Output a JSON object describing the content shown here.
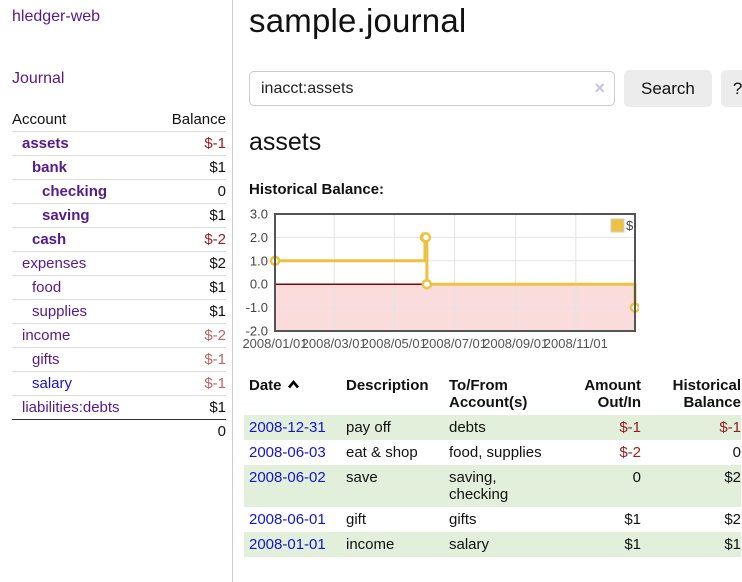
{
  "colors": {
    "link_purple": "#551a8b",
    "link_blue": "#1414cd",
    "negative_strong": "#971c1c",
    "negative_soft": "#bb6565",
    "row_stripe_green": "#e1efdb",
    "button_gray": "#ececec"
  },
  "sidebar": {
    "brand": "hledger-web",
    "nav": {
      "journal": "Journal"
    },
    "accounts_table": {
      "col_account": "Account",
      "col_balance": "Balance",
      "rows": [
        {
          "name": "assets",
          "balance": "$-1"
        },
        {
          "name": "bank",
          "balance": "$1"
        },
        {
          "name": "checking",
          "balance": "0"
        },
        {
          "name": "saving",
          "balance": "$1"
        },
        {
          "name": "cash",
          "balance": "$-2"
        },
        {
          "name": "expenses",
          "balance": "$2"
        },
        {
          "name": "food",
          "balance": "$1"
        },
        {
          "name": "supplies",
          "balance": "$1"
        },
        {
          "name": "income",
          "balance": "$-2"
        },
        {
          "name": "gifts",
          "balance": "$-1"
        },
        {
          "name": "salary",
          "balance": "$-1"
        },
        {
          "name": "liabilities:debts",
          "balance": "$1"
        }
      ],
      "total": "0"
    }
  },
  "main": {
    "title": "sample.journal",
    "search": {
      "value": "inacct:assets",
      "clear_label": "×",
      "search_button": "Search",
      "help_button": "?"
    },
    "account_heading": "assets",
    "chart_title": "Historical Balance:"
  },
  "chart_data": {
    "type": "line",
    "title": "Historical Balance of assets",
    "step": true,
    "x_range": [
      "2008-01-01",
      "2008-12-31"
    ],
    "ylim": [
      -2,
      3
    ],
    "y_ticks": [
      {
        "v": 3,
        "label": "3.0"
      },
      {
        "v": 2,
        "label": "2.0"
      },
      {
        "v": 1,
        "label": "1.0"
      },
      {
        "v": 0,
        "label": "0.0"
      },
      {
        "v": -1,
        "label": "-1.0"
      },
      {
        "v": -2,
        "label": "-2.0"
      }
    ],
    "x_ticks": [
      {
        "date": "2008-01-01",
        "label": "2008/01/01"
      },
      {
        "date": "2008-03-01",
        "label": "2008/03/01"
      },
      {
        "date": "2008-05-01",
        "label": "2008/05/01"
      },
      {
        "date": "2008-07-01",
        "label": "2008/07/01"
      },
      {
        "date": "2008-09-01",
        "label": "2008/09/01"
      },
      {
        "date": "2008-11-01",
        "label": "2008/11/01"
      }
    ],
    "series": [
      {
        "name": "$",
        "color": "#edc240",
        "points": [
          [
            "2008-01-01",
            1
          ],
          [
            "2008-06-01",
            2
          ],
          [
            "2008-06-02",
            2
          ],
          [
            "2008-06-03",
            0
          ],
          [
            "2008-12-31",
            -1
          ]
        ]
      }
    ],
    "legend": {
      "label": "$",
      "swatch": "#edc240",
      "position": "top-right"
    },
    "zero_line_color": "#8b0000",
    "negative_fill": "#fadcdc",
    "grid_color": "#e3e3e3",
    "border_color": "#545454"
  },
  "register": {
    "columns": {
      "date": "Date",
      "description": "Description",
      "tofrom": "To/From Account(s)",
      "amount": "Amount Out/In",
      "balance": "Historical Balance"
    },
    "rows": [
      {
        "date": "2008-12-31",
        "description": "pay off",
        "accounts": "debts",
        "amount": "$-1",
        "balance": "$-1"
      },
      {
        "date": "2008-06-03",
        "description": "eat & shop",
        "accounts": "food, supplies",
        "amount": "$-2",
        "balance": "0"
      },
      {
        "date": "2008-06-02",
        "description": "save",
        "accounts": "saving, checking",
        "amount": "0",
        "balance": "$2"
      },
      {
        "date": "2008-06-01",
        "description": "gift",
        "accounts": "gifts",
        "amount": "$1",
        "balance": "$2"
      },
      {
        "date": "2008-01-01",
        "description": "income",
        "accounts": "salary",
        "amount": "$1",
        "balance": "$1"
      }
    ]
  }
}
